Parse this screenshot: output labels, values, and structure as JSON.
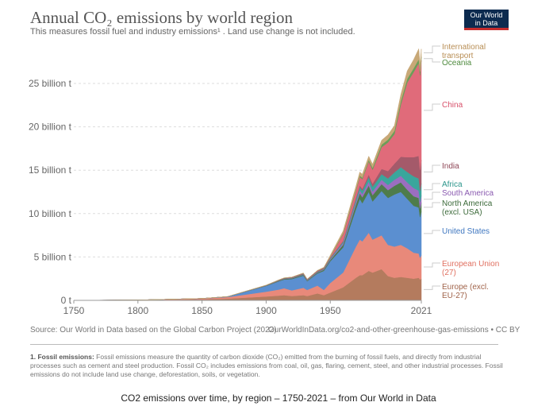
{
  "header": {
    "title": "Annual CO₂ emissions by world region",
    "subtitle": "This measures fossil fuel and industry emissions¹ . Land use change is not included.",
    "logo_line1": "Our World",
    "logo_line2": "in Data"
  },
  "footer": {
    "source": "Source: Our World in Data based on the Global Carbon Project (2022)",
    "url": "OurWorldInData.org/co2-and-other-greenhouse-gas-emissions • CC BY",
    "note_title": "1. Fossil emissions:",
    "note_text": "Fossil emissions measure the quantity of carbon dioxide (CO₂) emitted from the burning of fossil fuels, and directly from industrial processes such as cement and steel production. Fossil CO₂ includes emissions from coal, oil, gas, flaring, cement, steel, and other industrial processes. Fossil emissions do not include land use change, deforestation, soils, or vegetation.",
    "caption": "CO2 emissions over time, by region – 1750-2021 – from Our World in Data"
  },
  "chart_data": {
    "type": "area",
    "stacked": true,
    "title": "Annual CO₂ emissions by world region",
    "xlim": [
      1750,
      2021
    ],
    "ylim": [
      0,
      29
    ],
    "grid": "horizontal dashed",
    "legend": "right (inline labels)",
    "x_ticks": [
      "1750",
      "1800",
      "1850",
      "1900",
      "1950",
      "2021"
    ],
    "y_ticks": [
      {
        "v": 0,
        "label": "0 t"
      },
      {
        "v": 5,
        "label": "5 billion t"
      },
      {
        "v": 10,
        "label": "10 billion t"
      },
      {
        "v": 15,
        "label": "15 billion t"
      },
      {
        "v": 20,
        "label": "20 billion t"
      },
      {
        "v": 25,
        "label": "25 billion t"
      }
    ],
    "x": [
      1750,
      1800,
      1850,
      1870,
      1900,
      1910,
      1914,
      1920,
      1929,
      1932,
      1940,
      1945,
      1950,
      1960,
      1970,
      1973,
      1975,
      1980,
      1983,
      1990,
      1995,
      2000,
      2005,
      2010,
      2015,
      2019,
      2020,
      2021
    ],
    "series": [
      {
        "name": "Europe (excl. EU-27)",
        "color": "#b47b5e",
        "values": [
          0.009,
          0.03,
          0.12,
          0.2,
          0.45,
          0.55,
          0.6,
          0.5,
          0.6,
          0.5,
          0.8,
          0.6,
          0.9,
          1.5,
          2.6,
          2.9,
          2.9,
          3.4,
          3.2,
          3.6,
          2.8,
          2.6,
          2.7,
          2.6,
          2.5,
          2.6,
          2.4,
          2.5
        ]
      },
      {
        "name": "European Union (27)",
        "color": "#e8897a",
        "values": [
          0.001,
          0.01,
          0.08,
          0.18,
          0.55,
          0.7,
          0.8,
          0.65,
          0.85,
          0.7,
          0.9,
          0.6,
          1.1,
          1.7,
          3.6,
          4.1,
          3.9,
          4.4,
          3.8,
          3.9,
          3.6,
          3.6,
          3.7,
          3.4,
          3.0,
          2.8,
          2.5,
          2.7
        ]
      },
      {
        "name": "United States",
        "color": "#5b8fd0",
        "values": [
          0,
          0.001,
          0.02,
          0.05,
          0.66,
          0.95,
          1.0,
          1.3,
          1.4,
          1.0,
          1.4,
          2.2,
          2.5,
          2.9,
          4.3,
          4.7,
          4.4,
          4.7,
          4.4,
          5.1,
          5.4,
          6.0,
          6.1,
          5.7,
          5.4,
          5.3,
          4.7,
          5.0
        ]
      },
      {
        "name": "North America (excl. USA)",
        "color": "#4e7c4b",
        "values": [
          0,
          0,
          0,
          0,
          0.03,
          0.06,
          0.07,
          0.08,
          0.1,
          0.07,
          0.1,
          0.12,
          0.15,
          0.3,
          0.55,
          0.65,
          0.68,
          0.75,
          0.72,
          0.8,
          0.9,
          1.0,
          1.1,
          1.05,
          1.1,
          1.1,
          1.0,
          1.05
        ]
      },
      {
        "name": "South America",
        "color": "#9b6ec0",
        "values": [
          0,
          0,
          0,
          0,
          0.01,
          0.02,
          0.02,
          0.03,
          0.04,
          0.03,
          0.05,
          0.06,
          0.1,
          0.2,
          0.3,
          0.35,
          0.38,
          0.45,
          0.42,
          0.5,
          0.6,
          0.7,
          0.75,
          0.85,
          0.95,
          0.85,
          0.75,
          0.8
        ]
      },
      {
        "name": "Africa",
        "color": "#3aa69c",
        "values": [
          0,
          0,
          0,
          0,
          0.01,
          0.02,
          0.02,
          0.03,
          0.04,
          0.04,
          0.05,
          0.06,
          0.1,
          0.15,
          0.3,
          0.35,
          0.38,
          0.5,
          0.55,
          0.65,
          0.75,
          0.85,
          1.0,
          1.2,
          1.35,
          1.4,
          1.3,
          1.4
        ]
      },
      {
        "name": "India",
        "color": "#a45a6a",
        "values": [
          0,
          0,
          0,
          0.01,
          0.03,
          0.04,
          0.05,
          0.05,
          0.06,
          0.06,
          0.07,
          0.07,
          0.07,
          0.11,
          0.18,
          0.2,
          0.22,
          0.3,
          0.36,
          0.6,
          0.85,
          1.0,
          1.2,
          1.7,
          2.2,
          2.6,
          2.4,
          2.7
        ]
      },
      {
        "name": "China",
        "color": "#e06b7a",
        "values": [
          0,
          0,
          0,
          0,
          0,
          0.01,
          0.01,
          0.02,
          0.03,
          0.03,
          0.05,
          0.05,
          0.08,
          0.78,
          0.8,
          0.97,
          1.1,
          1.5,
          1.6,
          2.5,
          3.3,
          3.4,
          6.0,
          8.6,
          9.8,
          10.7,
          10.9,
          11.5
        ]
      },
      {
        "name": "Oceania",
        "color": "#6b9e58",
        "values": [
          0,
          0,
          0,
          0,
          0.01,
          0.02,
          0.02,
          0.02,
          0.03,
          0.02,
          0.03,
          0.04,
          0.05,
          0.1,
          0.15,
          0.17,
          0.18,
          0.22,
          0.24,
          0.3,
          0.33,
          0.39,
          0.42,
          0.44,
          0.45,
          0.45,
          0.43,
          0.42
        ]
      },
      {
        "name": "International transport",
        "color": "#c8a877",
        "values": [
          0,
          0,
          0,
          0,
          0,
          0,
          0,
          0,
          0,
          0,
          0,
          0,
          0.15,
          0.25,
          0.38,
          0.4,
          0.4,
          0.4,
          0.4,
          0.5,
          0.55,
          0.6,
          0.75,
          0.9,
          1.0,
          1.2,
          0.8,
          0.9
        ]
      }
    ],
    "labels": [
      {
        "lines": [
          "Europe (excl.",
          "EU-27)"
        ],
        "color": "#a0634a"
      },
      {
        "lines": [
          "European Union",
          "(27)"
        ],
        "color": "#e07060"
      },
      {
        "lines": [
          "United States"
        ],
        "color": "#3f77c0"
      },
      {
        "lines": [
          "North America",
          "(excl. USA)"
        ],
        "color": "#3c6a3a"
      },
      {
        "lines": [
          "South America"
        ],
        "color": "#8a5ab0"
      },
      {
        "lines": [
          "Africa"
        ],
        "color": "#2a958b"
      },
      {
        "lines": [
          "India"
        ],
        "color": "#8e4656"
      },
      {
        "lines": [
          "China"
        ],
        "color": "#d8506a"
      },
      {
        "lines": [
          "Oceania"
        ],
        "color": "#4e8a3e"
      },
      {
        "lines": [
          "International",
          "transport"
        ],
        "color": "#b88e55"
      }
    ]
  }
}
